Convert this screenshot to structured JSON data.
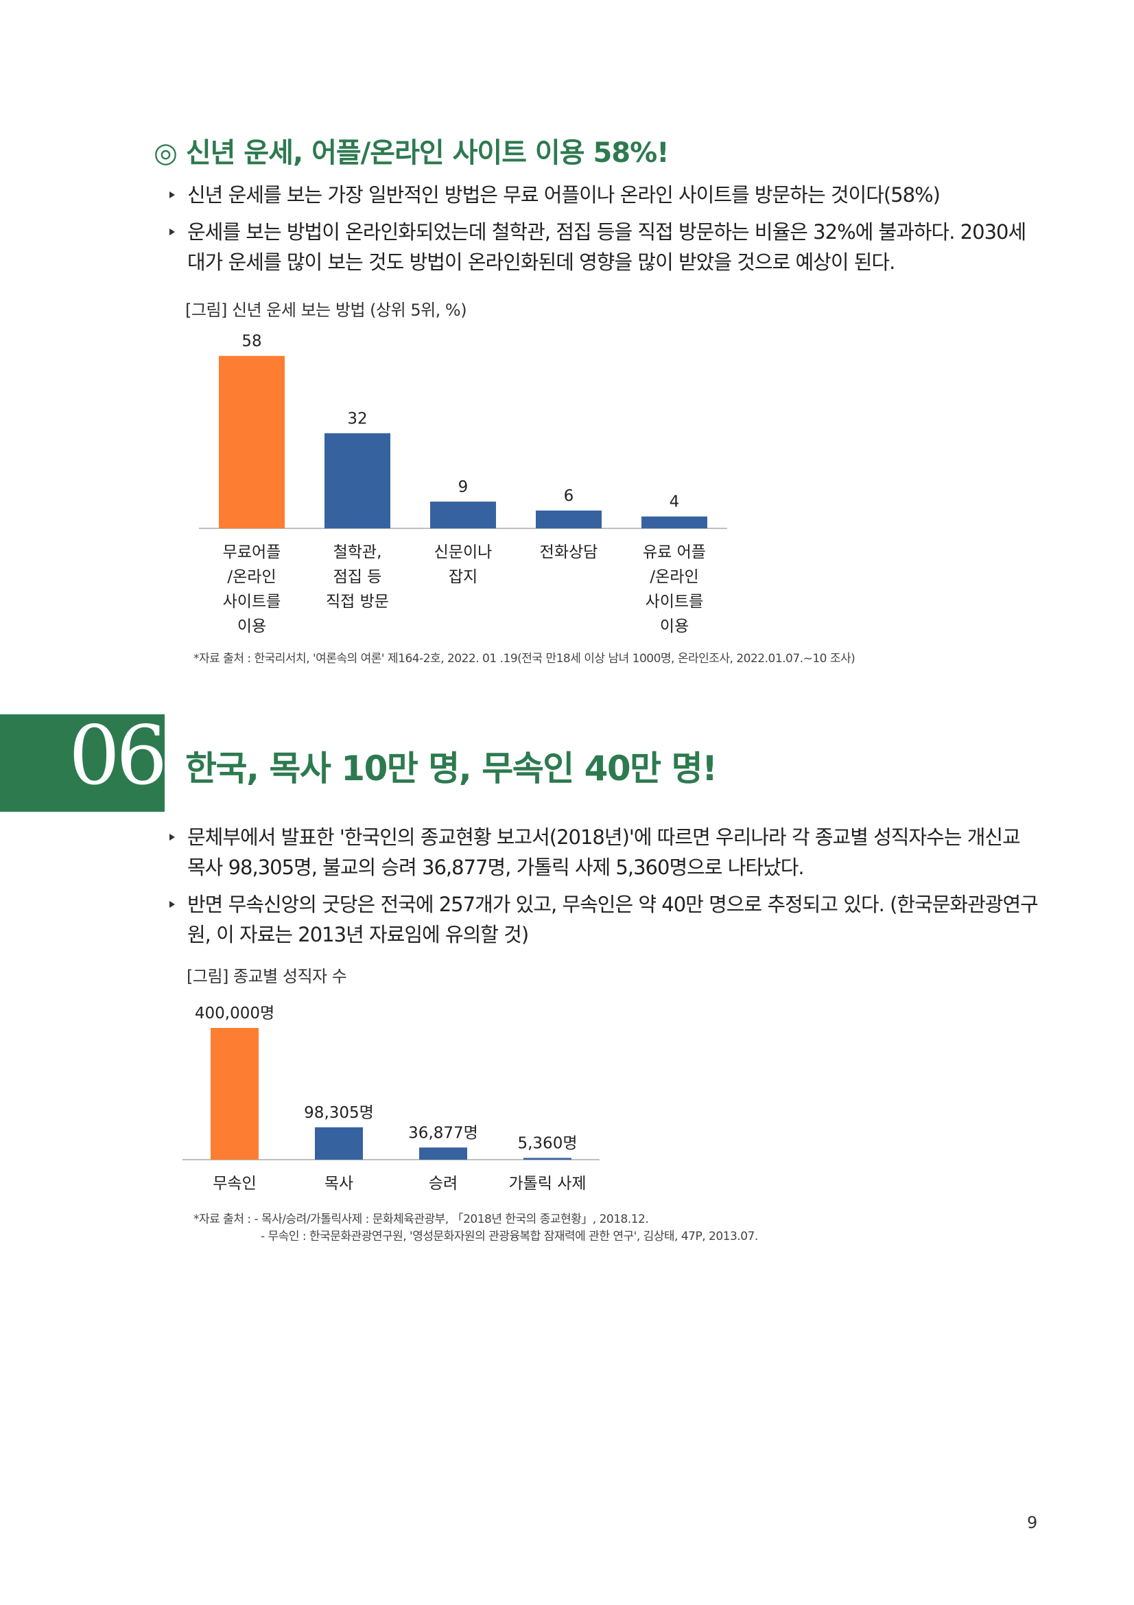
{
  "section1": {
    "heading": "◎ 신년 운세, 어플/온라인 사이트 이용 58%!",
    "bullets": [
      "신년 운세를 보는 가장 일반적인 방법은 무료 어플이나 온라인 사이트를 방문하는 것이다(58%)",
      "운세를 보는 방법이 온라인화되었는데 철학관, 점집 등을 직접 방문하는 비율은 32%에 불과하다. 2030세대가 운세를 많이 보는 것도 방법이 온라인화된데 영향을 많이 받았을 것으로 예상이 된다."
    ],
    "figure_caption": "[그림] 신년 운세 보는 방법 (상위 5위, %)",
    "source": "*자료 출처 : 한국리서치, '여론속의 여론' 제164-2호, 2022. 01 .19(전국 만18세 이상 남녀 1000명, 온라인조사, 2022.01.07.~10 조사)"
  },
  "section2": {
    "number": "06",
    "title": "한국, 목사 10만 명, 무속인 40만 명!",
    "bullets": [
      "문체부에서 발표한 '한국인의 종교현황 보고서(2018년)'에 따르면 우리나라 각 종교별 성직자수는 개신교 목사 98,305명, 불교의 승려 36,877명, 가톨릭 사제 5,360명으로 나타났다.",
      "반면 무속신앙의 굿당은 전국에 257개가 있고, 무속인은 약 40만 명으로 추정되고 있다. (한국문화관광연구원, 이 자료는 2013년 자료임에 유의할 것)"
    ],
    "figure_caption": "[그림] 종교별 성직자 수",
    "source_line1": "*자료 출처 :  - 목사/승려/가톨릭사제 : 문화체육관광부, 「2018년 한국의 종교현황」, 2018.12.",
    "source_line2": "- 무속인 : 한국문화관광연구원, '영성문화자원의 관광융복합 잠재력에 관한 연구', 김상태, 47P, 2013.07."
  },
  "page_number": "9",
  "colors": {
    "accent_green": "#2d7a4f",
    "highlight_orange": "#fd7e32",
    "bar_blue": "#3762a0"
  },
  "chart_data": [
    {
      "type": "bar",
      "title": "[그림] 신년 운세 보는 방법 (상위 5위, %)",
      "categories": [
        "무료어플 /온라인 사이트를 이용",
        "철학관, 점집 등 직접 방문",
        "신문이나 잡지",
        "전화상담",
        "유료 어플 /온라인 사이트를 이용"
      ],
      "category_lines": [
        [
          "무료어플",
          "/온라인",
          "사이트를",
          "이용"
        ],
        [
          "철학관,",
          "점집 등",
          "직접 방문"
        ],
        [
          "신문이나",
          "잡지"
        ],
        [
          "전화상담"
        ],
        [
          "유료 어플",
          "/온라인",
          "사이트를",
          "이용"
        ]
      ],
      "values": [
        58,
        32,
        9,
        6,
        4
      ],
      "value_labels": [
        "58",
        "32",
        "9",
        "6",
        "4"
      ],
      "highlight_index": 0,
      "ylim": [
        0,
        60
      ],
      "grid": false,
      "legend": "none"
    },
    {
      "type": "bar",
      "title": "[그림] 종교별 성직자 수",
      "categories": [
        "무속인",
        "목사",
        "승려",
        "가톨릭 사제"
      ],
      "values": [
        400000,
        98305,
        36877,
        5360
      ],
      "value_labels": [
        "400,000명",
        "98,305명",
        "36,877명",
        "5,360명"
      ],
      "highlight_index": 0,
      "ylim": [
        0,
        400000
      ],
      "grid": false,
      "legend": "none"
    }
  ]
}
